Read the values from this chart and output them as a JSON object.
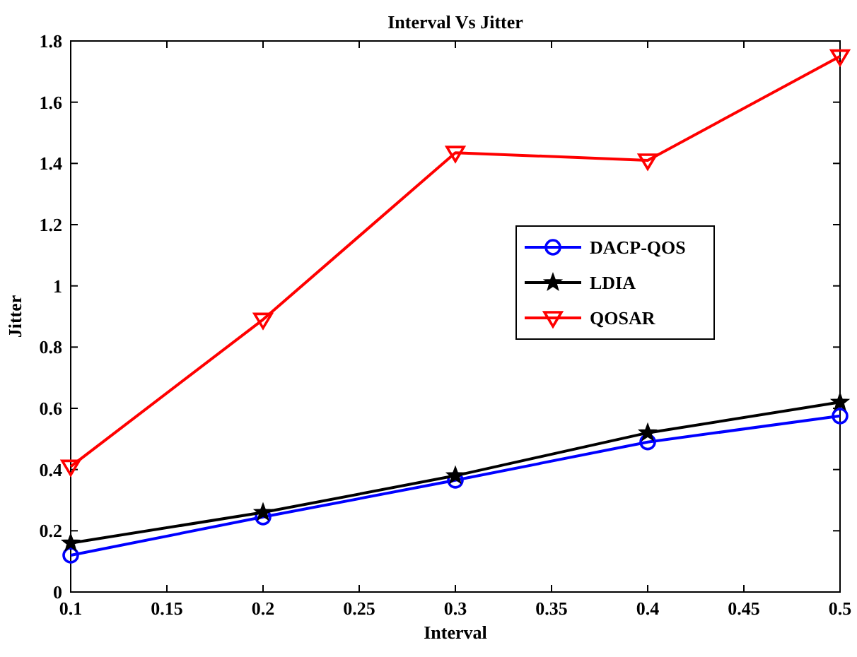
{
  "chart_data": {
    "type": "line",
    "title": "Interval Vs Jitter",
    "xlabel": "Interval",
    "ylabel": "Jitter",
    "x": [
      0.1,
      0.2,
      0.3,
      0.4,
      0.5
    ],
    "series": [
      {
        "name": "DACP-QOS",
        "color": "#0000ff",
        "marker": "circle",
        "values": [
          0.12,
          0.245,
          0.365,
          0.49,
          0.575
        ]
      },
      {
        "name": "LDIA",
        "color": "#000000",
        "marker": "star",
        "values": [
          0.16,
          0.26,
          0.38,
          0.52,
          0.62
        ]
      },
      {
        "name": "QOSAR",
        "color": "#ff0000",
        "marker": "triangle",
        "values": [
          0.41,
          0.89,
          1.435,
          1.41,
          1.75
        ]
      }
    ],
    "xlim": [
      0.1,
      0.5
    ],
    "xticks": [
      0.1,
      0.15,
      0.2,
      0.25,
      0.3,
      0.35,
      0.4,
      0.45,
      0.5
    ],
    "ylim": [
      0,
      1.8
    ],
    "yticks": [
      0,
      0.2,
      0.4,
      0.6,
      0.8,
      1,
      1.2,
      1.4,
      1.6,
      1.8
    ],
    "grid": false,
    "legend": "right",
    "line_style": "solid"
  }
}
